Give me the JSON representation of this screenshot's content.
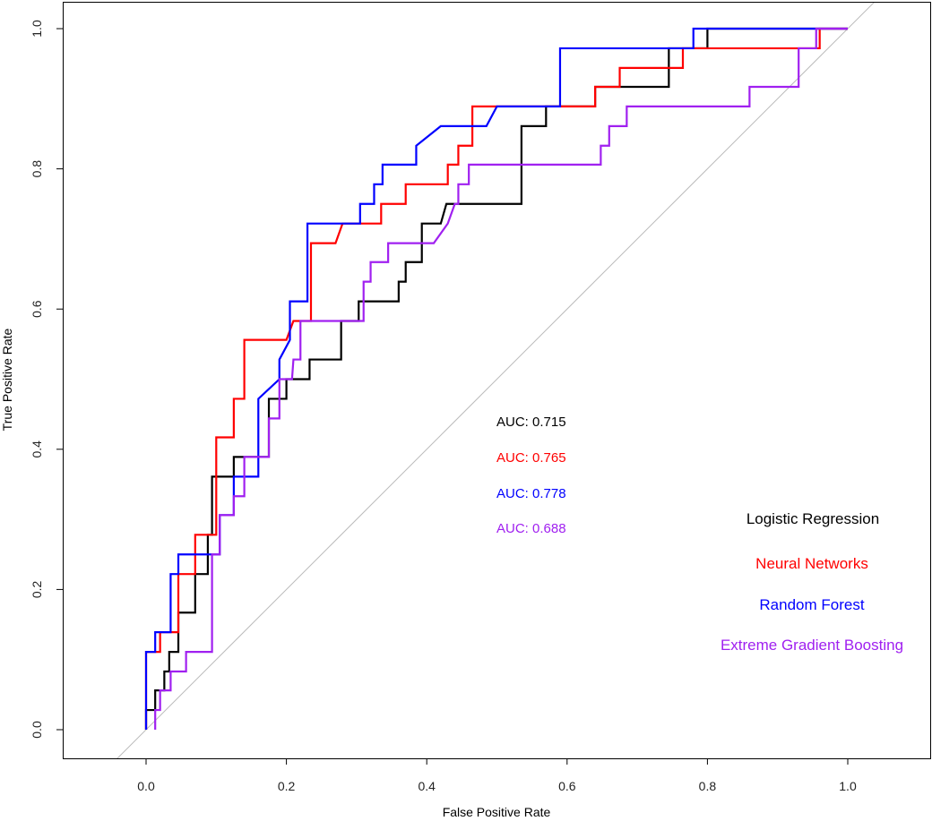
{
  "chart_data": {
    "type": "line",
    "title": "",
    "xlabel": "False Positive Rate",
    "ylabel": "True Positive Rate",
    "xlim": [
      -0.12,
      1.12
    ],
    "ylim": [
      -0.04,
      1.04
    ],
    "xticks": [
      0.0,
      0.2,
      0.4,
      0.6,
      0.8,
      1.0
    ],
    "yticks": [
      0.0,
      0.2,
      0.4,
      0.6,
      0.8,
      1.0
    ],
    "xtick_labels": [
      "0.0",
      "0.2",
      "0.4",
      "0.6",
      "0.8",
      "1.0"
    ],
    "ytick_labels": [
      "0.0",
      "0.2",
      "0.4",
      "0.6",
      "0.8",
      "1.0"
    ],
    "reference_line": {
      "name": "diagonal",
      "color": "#bbbbbb"
    },
    "series": [
      {
        "name": "Logistic Regression",
        "color": "#000000",
        "auc_label": "AUC: 0.715",
        "points": [
          [
            0,
            0
          ],
          [
            0,
            0.028
          ],
          [
            0.013,
            0.028
          ],
          [
            0.013,
            0.056
          ],
          [
            0.026,
            0.056
          ],
          [
            0.026,
            0.083
          ],
          [
            0.033,
            0.083
          ],
          [
            0.033,
            0.111
          ],
          [
            0.046,
            0.111
          ],
          [
            0.046,
            0.167
          ],
          [
            0.07,
            0.167
          ],
          [
            0.07,
            0.222
          ],
          [
            0.088,
            0.222
          ],
          [
            0.088,
            0.278
          ],
          [
            0.094,
            0.278
          ],
          [
            0.094,
            0.361
          ],
          [
            0.125,
            0.361
          ],
          [
            0.125,
            0.389
          ],
          [
            0.175,
            0.389
          ],
          [
            0.175,
            0.472
          ],
          [
            0.2,
            0.472
          ],
          [
            0.2,
            0.5
          ],
          [
            0.233,
            0.5
          ],
          [
            0.233,
            0.528
          ],
          [
            0.278,
            0.528
          ],
          [
            0.278,
            0.583
          ],
          [
            0.303,
            0.583
          ],
          [
            0.303,
            0.611
          ],
          [
            0.36,
            0.611
          ],
          [
            0.36,
            0.639
          ],
          [
            0.37,
            0.639
          ],
          [
            0.37,
            0.667
          ],
          [
            0.393,
            0.667
          ],
          [
            0.393,
            0.722
          ],
          [
            0.42,
            0.722
          ],
          [
            0.428,
            0.75
          ],
          [
            0.5,
            0.75
          ],
          [
            0.5,
            0.75
          ],
          [
            0.535,
            0.75
          ],
          [
            0.535,
            0.778
          ],
          [
            0.535,
            0.861
          ],
          [
            0.57,
            0.861
          ],
          [
            0.57,
            0.889
          ],
          [
            0.64,
            0.889
          ],
          [
            0.64,
            0.917
          ],
          [
            0.745,
            0.917
          ],
          [
            0.745,
            0.972
          ],
          [
            0.8,
            0.972
          ],
          [
            0.8,
            1.0
          ],
          [
            1.0,
            1.0
          ]
        ]
      },
      {
        "name": "Neural Networks",
        "color": "#ff0000",
        "auc_label": "AUC: 0.765",
        "points": [
          [
            0,
            0
          ],
          [
            0,
            0.111
          ],
          [
            0.02,
            0.111
          ],
          [
            0.02,
            0.139
          ],
          [
            0.046,
            0.139
          ],
          [
            0.046,
            0.222
          ],
          [
            0.07,
            0.222
          ],
          [
            0.07,
            0.278
          ],
          [
            0.1,
            0.278
          ],
          [
            0.1,
            0.417
          ],
          [
            0.125,
            0.417
          ],
          [
            0.125,
            0.472
          ],
          [
            0.14,
            0.472
          ],
          [
            0.14,
            0.556
          ],
          [
            0.2,
            0.556
          ],
          [
            0.21,
            0.583
          ],
          [
            0.235,
            0.583
          ],
          [
            0.235,
            0.694
          ],
          [
            0.27,
            0.694
          ],
          [
            0.28,
            0.722
          ],
          [
            0.335,
            0.722
          ],
          [
            0.335,
            0.75
          ],
          [
            0.37,
            0.75
          ],
          [
            0.37,
            0.778
          ],
          [
            0.43,
            0.778
          ],
          [
            0.43,
            0.806
          ],
          [
            0.445,
            0.806
          ],
          [
            0.445,
            0.833
          ],
          [
            0.465,
            0.833
          ],
          [
            0.465,
            0.889
          ],
          [
            0.64,
            0.889
          ],
          [
            0.64,
            0.917
          ],
          [
            0.675,
            0.917
          ],
          [
            0.675,
            0.944
          ],
          [
            0.765,
            0.944
          ],
          [
            0.765,
            0.972
          ],
          [
            0.96,
            0.972
          ],
          [
            0.96,
            1.0
          ],
          [
            1.0,
            1.0
          ]
        ]
      },
      {
        "name": "Random Forest",
        "color": "#0000ff",
        "auc_label": "AUC: 0.778",
        "points": [
          [
            0,
            0
          ],
          [
            0,
            0.111
          ],
          [
            0.013,
            0.111
          ],
          [
            0.013,
            0.139
          ],
          [
            0.035,
            0.139
          ],
          [
            0.035,
            0.222
          ],
          [
            0.046,
            0.222
          ],
          [
            0.046,
            0.25
          ],
          [
            0.105,
            0.25
          ],
          [
            0.105,
            0.306
          ],
          [
            0.125,
            0.306
          ],
          [
            0.125,
            0.361
          ],
          [
            0.16,
            0.361
          ],
          [
            0.16,
            0.472
          ],
          [
            0.19,
            0.5
          ],
          [
            0.19,
            0.528
          ],
          [
            0.205,
            0.556
          ],
          [
            0.205,
            0.611
          ],
          [
            0.23,
            0.611
          ],
          [
            0.23,
            0.722
          ],
          [
            0.305,
            0.722
          ],
          [
            0.305,
            0.75
          ],
          [
            0.325,
            0.75
          ],
          [
            0.325,
            0.778
          ],
          [
            0.337,
            0.778
          ],
          [
            0.337,
            0.806
          ],
          [
            0.385,
            0.806
          ],
          [
            0.385,
            0.833
          ],
          [
            0.42,
            0.861
          ],
          [
            0.485,
            0.861
          ],
          [
            0.5,
            0.889
          ],
          [
            0.59,
            0.889
          ],
          [
            0.59,
            0.972
          ],
          [
            0.78,
            0.972
          ],
          [
            0.78,
            1.0
          ],
          [
            0.95,
            1.0
          ],
          [
            1.0,
            1.0
          ]
        ]
      },
      {
        "name": "Extreme Gradient Boosting",
        "color": "#a020f0",
        "auc_label": "AUC: 0.688",
        "points": [
          [
            0.013,
            0
          ],
          [
            0.013,
            0.028
          ],
          [
            0.02,
            0.028
          ],
          [
            0.02,
            0.056
          ],
          [
            0.035,
            0.056
          ],
          [
            0.035,
            0.083
          ],
          [
            0.057,
            0.083
          ],
          [
            0.057,
            0.111
          ],
          [
            0.094,
            0.111
          ],
          [
            0.094,
            0.25
          ],
          [
            0.105,
            0.25
          ],
          [
            0.105,
            0.306
          ],
          [
            0.125,
            0.306
          ],
          [
            0.125,
            0.333
          ],
          [
            0.14,
            0.333
          ],
          [
            0.14,
            0.389
          ],
          [
            0.175,
            0.389
          ],
          [
            0.175,
            0.444
          ],
          [
            0.19,
            0.444
          ],
          [
            0.19,
            0.5
          ],
          [
            0.208,
            0.5
          ],
          [
            0.21,
            0.528
          ],
          [
            0.22,
            0.528
          ],
          [
            0.22,
            0.583
          ],
          [
            0.31,
            0.583
          ],
          [
            0.31,
            0.639
          ],
          [
            0.32,
            0.639
          ],
          [
            0.32,
            0.667
          ],
          [
            0.345,
            0.667
          ],
          [
            0.345,
            0.694
          ],
          [
            0.41,
            0.694
          ],
          [
            0.43,
            0.722
          ],
          [
            0.44,
            0.75
          ],
          [
            0.445,
            0.75
          ],
          [
            0.445,
            0.778
          ],
          [
            0.46,
            0.778
          ],
          [
            0.46,
            0.806
          ],
          [
            0.648,
            0.806
          ],
          [
            0.648,
            0.833
          ],
          [
            0.66,
            0.833
          ],
          [
            0.66,
            0.861
          ],
          [
            0.685,
            0.861
          ],
          [
            0.685,
            0.889
          ],
          [
            0.86,
            0.889
          ],
          [
            0.86,
            0.917
          ],
          [
            0.93,
            0.917
          ],
          [
            0.93,
            0.972
          ],
          [
            0.955,
            0.972
          ],
          [
            0.955,
            1.0
          ],
          [
            1.0,
            1.0
          ]
        ]
      }
    ]
  }
}
